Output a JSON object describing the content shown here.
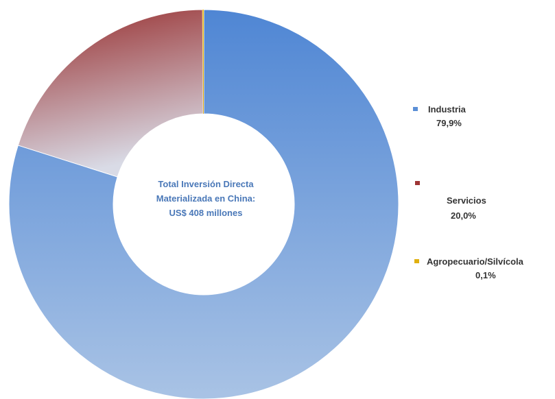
{
  "chart_data": {
    "type": "pie",
    "categories": [
      "Industria",
      "Servicios",
      "Agropecuario/Silvícola"
    ],
    "values": [
      79.9,
      20.0,
      0.1
    ],
    "value_labels": [
      "79,9%",
      "20,0%",
      "0,1%"
    ],
    "colors": [
      "#5b8fd6",
      "#9e3535",
      "#e0b010"
    ],
    "donut": true,
    "legend_position": "right",
    "center_text": [
      "Total Inversión Directa",
      "Materializada  en China:",
      "US$ 408 millones"
    ]
  }
}
